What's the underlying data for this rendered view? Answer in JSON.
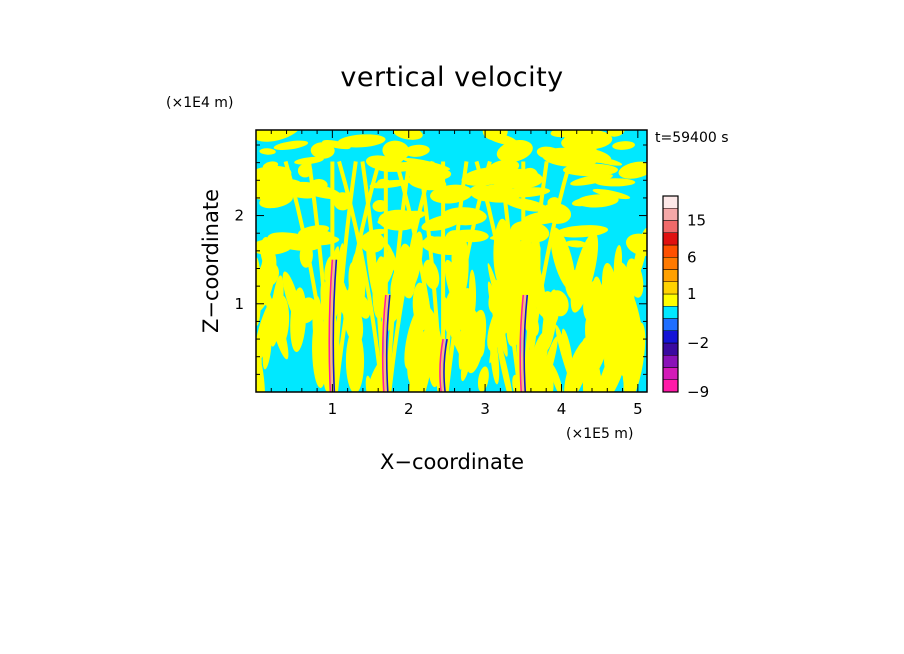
{
  "chart_data": {
    "type": "heatmap",
    "title": "vertical velocity",
    "xlabel": "X−coordinate",
    "ylabel": "Z−coordinate",
    "x_unit": "(×1E5 m)",
    "y_unit": "(×1E4 m)",
    "time_label": "t=59400 s",
    "xlim": [
      0,
      5.12
    ],
    "ylim": [
      0,
      2.97
    ],
    "x_ticks": [
      1,
      2,
      3,
      4,
      5
    ],
    "y_ticks": [
      1,
      2
    ],
    "x_tick_labels": [
      "1",
      "2",
      "3",
      "4",
      "5"
    ],
    "y_tick_labels": [
      "1",
      "2"
    ],
    "colorbar": {
      "labels": [
        {
          "value": 15,
          "text": "15"
        },
        {
          "value": 6,
          "text": "6"
        },
        {
          "value": 1,
          "text": "1"
        },
        {
          "value": -2,
          "text": "−2"
        },
        {
          "value": -9,
          "text": "−9"
        }
      ],
      "bands": [
        {
          "lo": -12,
          "hi": -9,
          "color": "#ff1aa8"
        },
        {
          "lo": -9,
          "hi": -6,
          "color": "#d41ab8"
        },
        {
          "lo": -6,
          "hi": -4,
          "color": "#8a12b8"
        },
        {
          "lo": -4,
          "hi": -3,
          "color": "#3a0aa0"
        },
        {
          "lo": -3,
          "hi": -2,
          "color": "#1414d6"
        },
        {
          "lo": -2,
          "hi": -1,
          "color": "#1e6eff"
        },
        {
          "lo": -1,
          "hi": 0,
          "color": "#00e8ff"
        },
        {
          "lo": 0,
          "hi": 0.5,
          "color": "#ffff00"
        },
        {
          "lo": 0.5,
          "hi": 1,
          "color": "#ffd200"
        },
        {
          "lo": 1,
          "hi": 2,
          "color": "#ffa000"
        },
        {
          "lo": 2,
          "hi": 4,
          "color": "#ff7a00"
        },
        {
          "lo": 4,
          "hi": 6,
          "color": "#ff5000"
        },
        {
          "lo": 6,
          "hi": 9,
          "color": "#e01010"
        },
        {
          "lo": 9,
          "hi": 12,
          "color": "#f06a6a"
        },
        {
          "lo": 12,
          "hi": 15,
          "color": "#f4a8a8"
        },
        {
          "lo": 15,
          "hi": 20,
          "color": "#fde8e8"
        }
      ]
    },
    "dominant_colors": {
      "updraft": "#ffff00",
      "downdraft": "#00e8ff"
    },
    "strong_updraft_columns_x": [
      1.0,
      1.7,
      2.45,
      3.5
    ]
  }
}
